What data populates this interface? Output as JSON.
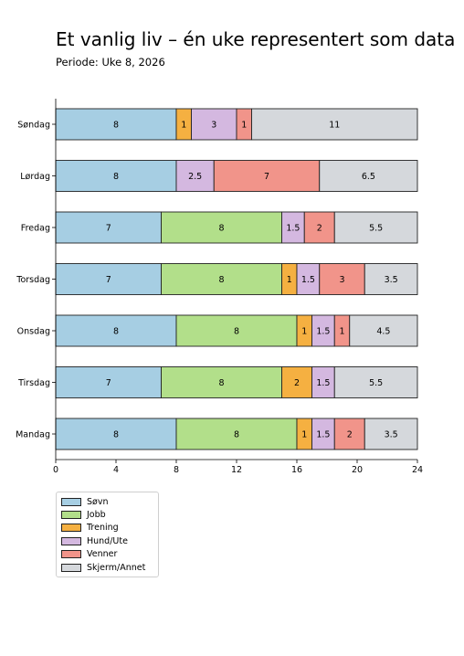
{
  "title": "Et vanlig liv – én uke representert som data",
  "subtitle": "Periode: Uke 8, 2026",
  "chart_data": {
    "type": "bar",
    "orientation": "horizontal",
    "stacked": true,
    "categories": [
      "Søndag",
      "Lørdag",
      "Fredag",
      "Torsdag",
      "Onsdag",
      "Tirsdag",
      "Mandag"
    ],
    "series": [
      {
        "name": "Søvn",
        "color": "#a6cee3",
        "values": [
          8,
          8,
          7,
          7,
          8,
          7,
          8
        ]
      },
      {
        "name": "Jobb",
        "color": "#b2df8a",
        "values": [
          0,
          0,
          8,
          8,
          8,
          8,
          8
        ]
      },
      {
        "name": "Trening",
        "color": "#f5b041",
        "values": [
          1,
          0,
          0,
          1,
          1,
          2,
          1
        ]
      },
      {
        "name": "Hund/Ute",
        "color": "#d4b8e0",
        "values": [
          3,
          2.5,
          1.5,
          1.5,
          1.5,
          1.5,
          1.5
        ]
      },
      {
        "name": "Venner",
        "color": "#f1948a",
        "values": [
          1,
          7,
          2,
          3,
          1,
          0,
          2
        ]
      },
      {
        "name": "Skjerm/Annet",
        "color": "#d5d8dc",
        "values": [
          11,
          6.5,
          5.5,
          3.5,
          4.5,
          5.5,
          3.5
        ]
      }
    ],
    "xlim": [
      0,
      24
    ],
    "xticks": [
      0,
      4,
      8,
      12,
      16,
      20,
      24
    ],
    "xlabel": "",
    "ylabel": "",
    "grid": false,
    "legend_position": "below-left"
  }
}
